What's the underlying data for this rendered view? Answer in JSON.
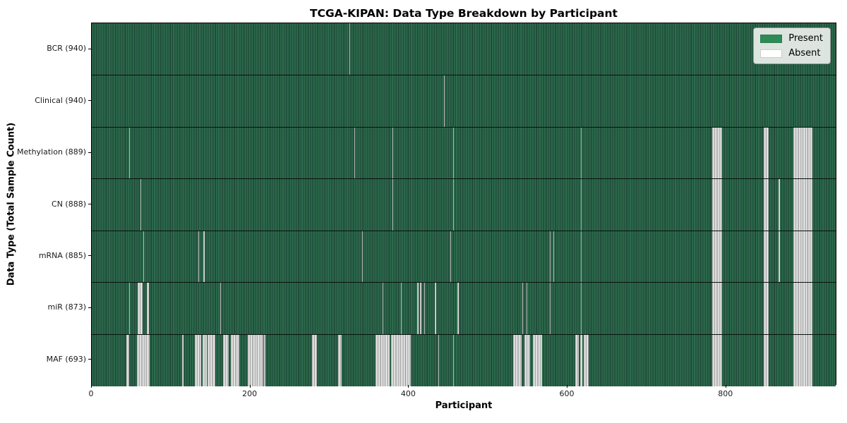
{
  "chart_data": {
    "type": "heatmap",
    "title": "TCGA-KIPAN: Data Type Breakdown by Participant",
    "xlabel": "Participant",
    "ylabel": "Data Type (Total Sample Count)",
    "x_range": [
      0,
      940
    ],
    "xticks": [
      0,
      200,
      400,
      600,
      800
    ],
    "grid": false,
    "legend_position": "upper right",
    "legend": [
      {
        "label": "Present",
        "color": "#2e8b57"
      },
      {
        "label": "Absent",
        "color": "#ffffff"
      }
    ],
    "colors": {
      "present": "#2e8b57",
      "absent": "#ffffff",
      "row_separator": "#000000"
    },
    "rows": [
      {
        "label": "BCR (940)",
        "name": "BCR",
        "total_samples": 940,
        "absent_ranges": [
          [
            325,
            325
          ]
        ]
      },
      {
        "label": "Clinical (940)",
        "name": "Clinical",
        "total_samples": 940,
        "absent_ranges": [
          [
            444,
            444
          ]
        ]
      },
      {
        "label": "Methylation (889)",
        "name": "Methylation",
        "total_samples": 889,
        "absent_ranges": [
          [
            47,
            47
          ],
          [
            331,
            331
          ],
          [
            379,
            379
          ],
          [
            456,
            456
          ],
          [
            617,
            617
          ],
          [
            782,
            794
          ],
          [
            847,
            853
          ],
          [
            885,
            908
          ]
        ]
      },
      {
        "label": "CN (888)",
        "name": "CN",
        "total_samples": 888,
        "absent_ranges": [
          [
            61,
            61
          ],
          [
            379,
            379
          ],
          [
            456,
            456
          ],
          [
            617,
            617
          ],
          [
            782,
            794
          ],
          [
            847,
            853
          ],
          [
            866,
            867
          ],
          [
            885,
            908
          ]
        ]
      },
      {
        "label": "mRNA (885)",
        "name": "mRNA",
        "total_samples": 885,
        "absent_ranges": [
          [
            65,
            65
          ],
          [
            134,
            134
          ],
          [
            141,
            141
          ],
          [
            341,
            341
          ],
          [
            452,
            452
          ],
          [
            578,
            578
          ],
          [
            582,
            582
          ],
          [
            617,
            617
          ],
          [
            782,
            794
          ],
          [
            847,
            853
          ],
          [
            866,
            867
          ],
          [
            885,
            908
          ]
        ]
      },
      {
        "label": "miR (873)",
        "name": "miR",
        "total_samples": 873,
        "absent_ranges": [
          [
            47,
            47
          ],
          [
            58,
            63
          ],
          [
            69,
            71
          ],
          [
            162,
            162
          ],
          [
            367,
            367
          ],
          [
            390,
            390
          ],
          [
            410,
            411
          ],
          [
            414,
            415
          ],
          [
            419,
            419
          ],
          [
            433,
            433
          ],
          [
            461,
            462
          ],
          [
            543,
            543
          ],
          [
            548,
            548
          ],
          [
            578,
            578
          ],
          [
            617,
            617
          ],
          [
            782,
            794
          ],
          [
            847,
            853
          ],
          [
            885,
            908
          ]
        ]
      },
      {
        "label": "MAF (693)",
        "name": "MAF",
        "total_samples": 693,
        "absent_ranges": [
          [
            44,
            46
          ],
          [
            57,
            72
          ],
          [
            114,
            115
          ],
          [
            130,
            137
          ],
          [
            140,
            144
          ],
          [
            146,
            155
          ],
          [
            166,
            172
          ],
          [
            175,
            185
          ],
          [
            197,
            215
          ],
          [
            217,
            218
          ],
          [
            278,
            283
          ],
          [
            311,
            314
          ],
          [
            358,
            375
          ],
          [
            377,
            401
          ],
          [
            437,
            437
          ],
          [
            456,
            456
          ],
          [
            531,
            541
          ],
          [
            546,
            552
          ],
          [
            556,
            567
          ],
          [
            610,
            613
          ],
          [
            616,
            618
          ],
          [
            620,
            626
          ],
          [
            782,
            794
          ],
          [
            847,
            853
          ],
          [
            885,
            908
          ]
        ]
      }
    ]
  }
}
